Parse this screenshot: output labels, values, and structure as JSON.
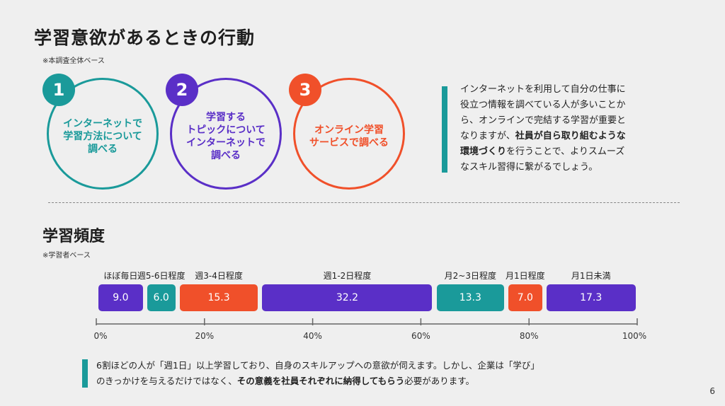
{
  "title": "学習意欲があるときの行動",
  "title_note": "※本調査全体ベース",
  "behaviors": [
    {
      "number": "1",
      "lines": [
        "インターネットで",
        "学習方法について",
        "調べる"
      ],
      "color": "#1a9a9a"
    },
    {
      "number": "2",
      "lines": [
        "学習する",
        "トピックについて",
        "インターネットで",
        "調べる"
      ],
      "color": "#5a2fc7"
    },
    {
      "number": "3",
      "lines": [
        "オンライン学習",
        "サービスで調べる"
      ],
      "color": "#f0502a"
    }
  ],
  "insight": {
    "bar_color": "#1a9a9a",
    "lines": [
      {
        "parts": [
          {
            "t": "インターネットを利用して自分の仕事に"
          }
        ]
      },
      {
        "parts": [
          {
            "t": "役立つ情報を調べている人が多いことか"
          }
        ]
      },
      {
        "parts": [
          {
            "t": "ら、オンラインで完結する学習が重要と"
          }
        ]
      },
      {
        "parts": [
          {
            "t": "なりますが、"
          },
          {
            "t": "社員が自ら取り組むような",
            "b": true
          }
        ]
      },
      {
        "parts": [
          {
            "t": "環境づくり",
            "b": true
          },
          {
            "t": "を行うことで、よりスムーズ"
          }
        ]
      },
      {
        "parts": [
          {
            "t": "なスキル習得に繋がるでしょう。"
          }
        ]
      }
    ]
  },
  "freq_title": "学習頻度",
  "freq_note": "※学習者ベース",
  "chart_data": {
    "type": "bar",
    "stacked": true,
    "orientation": "horizontal",
    "categories": [
      "ほぼ毎日",
      "週5-6日程度",
      "週3-4日程度",
      "週1-2日程度",
      "月2~3日程度",
      "月1日程度",
      "月1日未満"
    ],
    "values": [
      9.0,
      6.0,
      15.3,
      32.2,
      13.3,
      7.0,
      17.3
    ],
    "value_labels": [
      "9.0",
      "6.0",
      "15.3",
      "32.2",
      "13.3",
      "7.0",
      "17.3"
    ],
    "colors": [
      "#5a2fc7",
      "#1a9a9a",
      "#f0502a",
      "#5a2fc7",
      "#1a9a9a",
      "#f0502a",
      "#5a2fc7"
    ],
    "xlim": [
      0,
      100
    ],
    "ticks": [
      0,
      20,
      40,
      60,
      80,
      100
    ],
    "tick_labels": [
      "0%",
      "20%",
      "40%",
      "60%",
      "80%",
      "100%"
    ]
  },
  "summary": {
    "bar_color": "#1a9a9a",
    "lines": [
      {
        "parts": [
          {
            "t": "6割ほどの人が「週1日」以上学習しており、自身のスキルアップへの意欲が伺えます。しかし、企業は「学び」"
          }
        ]
      },
      {
        "parts": [
          {
            "t": "のきっかけを与えるだけではなく、"
          },
          {
            "t": "その意義を社員それぞれに納得してもらう",
            "b": true
          },
          {
            "t": "必要があります。"
          }
        ]
      }
    ]
  },
  "page_number": "6"
}
